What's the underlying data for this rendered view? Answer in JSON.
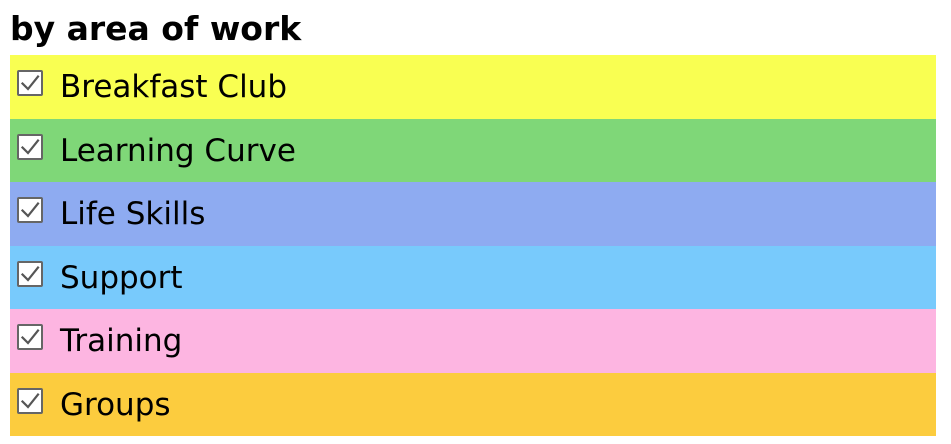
{
  "filter": {
    "heading": "by area of work",
    "items": [
      {
        "label": "Breakfast Club",
        "checked": true,
        "color": "#f9ff52"
      },
      {
        "label": "Learning Curve",
        "checked": true,
        "color": "#7fd778"
      },
      {
        "label": "Life Skills",
        "checked": true,
        "color": "#8eabf1"
      },
      {
        "label": "Support",
        "checked": true,
        "color": "#78cafc"
      },
      {
        "label": "Training",
        "checked": true,
        "color": "#fdb5e1"
      },
      {
        "label": "Groups",
        "checked": true,
        "color": "#fccc3e"
      }
    ]
  }
}
